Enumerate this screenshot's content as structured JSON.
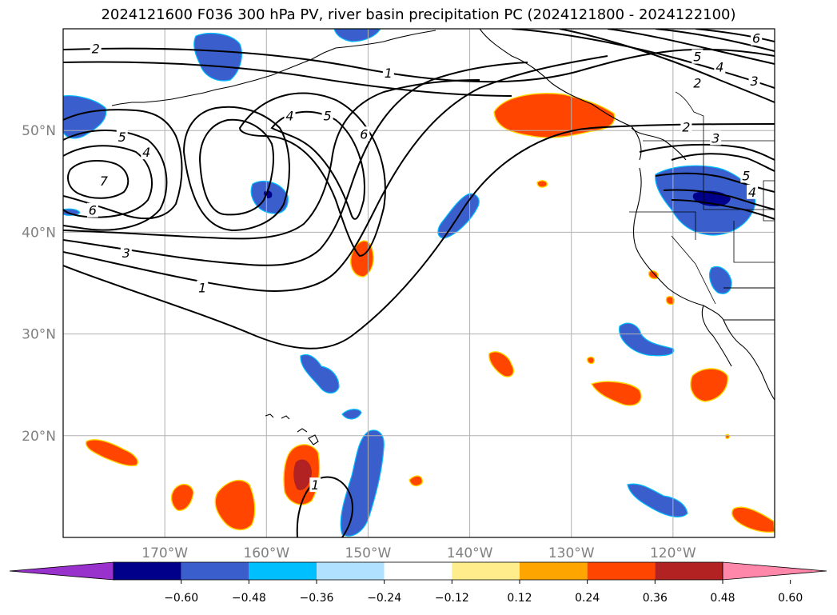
{
  "title": "2024121600 F036 300 hPa PV, river basin precipitation PC (2024121800 - 2024122100)",
  "map": {
    "lon_range": [
      -180,
      -110
    ],
    "lat_range": [
      10,
      60
    ],
    "lon_ticks": [
      {
        "value": -170,
        "label": "170°W"
      },
      {
        "value": -160,
        "label": "160°W"
      },
      {
        "value": -150,
        "label": "150°W"
      },
      {
        "value": -140,
        "label": "140°W"
      },
      {
        "value": -130,
        "label": "130°W"
      },
      {
        "value": -120,
        "label": "120°W"
      }
    ],
    "lat_ticks": [
      {
        "value": 20,
        "label": "20°N"
      },
      {
        "value": 30,
        "label": "30°N"
      },
      {
        "value": 40,
        "label": "40°N"
      },
      {
        "value": 50,
        "label": "50°N"
      }
    ],
    "grid": true,
    "tick_color": "#808080"
  },
  "colorbar": {
    "orientation": "horizontal",
    "extend": "both",
    "bins": [
      {
        "color": "#9932CC"
      },
      {
        "color": "#00008B"
      },
      {
        "color": "#3A5FCD"
      },
      {
        "color": "#00BFFF"
      },
      {
        "color": "#B0E2FF"
      },
      {
        "color": "#FFFFFF"
      },
      {
        "color": "#FFEC8B"
      },
      {
        "color": "#FFA500"
      },
      {
        "color": "#FF4500"
      },
      {
        "color": "#B22222"
      },
      {
        "color": "#FF88AA"
      }
    ],
    "tick_labels": [
      "−0.60",
      "−0.48",
      "−0.36",
      "−0.24",
      "−0.12",
      "0.12",
      "0.24",
      "0.36",
      "0.48",
      "0.60"
    ]
  },
  "contour_labels": [
    {
      "text": "2",
      "lon": -176.8,
      "lat": 58.0
    },
    {
      "text": "1",
      "lon": -148.0,
      "lat": 55.6
    },
    {
      "text": "4",
      "lon": -157.7,
      "lat": 51.4
    },
    {
      "text": "5",
      "lon": -154.0,
      "lat": 51.4
    },
    {
      "text": "6",
      "lon": -150.4,
      "lat": 49.6
    },
    {
      "text": "5",
      "lon": -174.2,
      "lat": 49.3
    },
    {
      "text": "4",
      "lon": -171.8,
      "lat": 47.8
    },
    {
      "text": "7",
      "lon": -176.0,
      "lat": 45.0
    },
    {
      "text": "6",
      "lon": -177.1,
      "lat": 42.1
    },
    {
      "text": "3",
      "lon": -173.8,
      "lat": 37.9
    },
    {
      "text": "1",
      "lon": -166.3,
      "lat": 34.5
    },
    {
      "text": "5",
      "lon": -117.6,
      "lat": 57.2
    },
    {
      "text": "4",
      "lon": -115.4,
      "lat": 56.2
    },
    {
      "text": "2",
      "lon": -117.6,
      "lat": 54.6
    },
    {
      "text": "3",
      "lon": -112.0,
      "lat": 54.8
    },
    {
      "text": "6",
      "lon": -111.8,
      "lat": 59.0
    },
    {
      "text": "2",
      "lon": -118.7,
      "lat": 50.3
    },
    {
      "text": "3",
      "lon": -115.8,
      "lat": 49.2
    },
    {
      "text": "5",
      "lon": -112.8,
      "lat": 45.5
    },
    {
      "text": "4",
      "lon": -112.2,
      "lat": 43.9
    },
    {
      "text": "1",
      "lon": -155.2,
      "lat": 15.1
    }
  ]
}
